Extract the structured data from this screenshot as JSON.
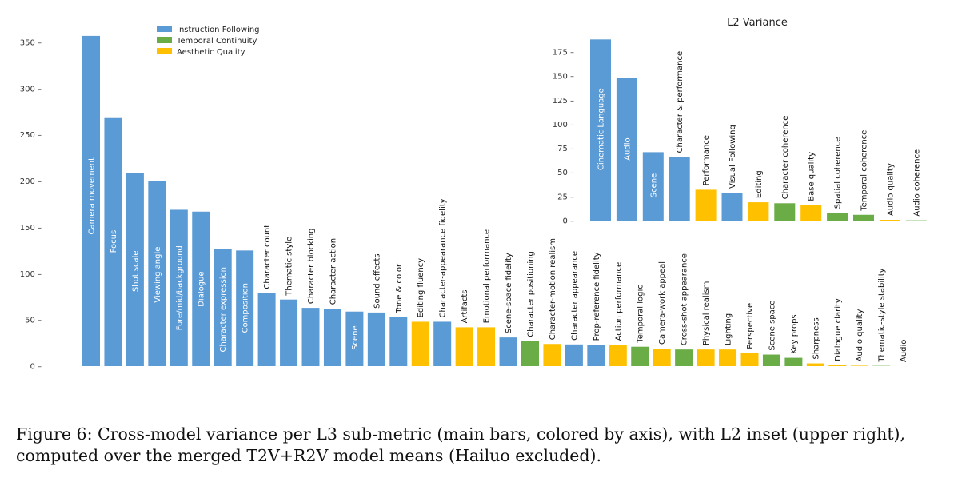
{
  "caption": "Figure 6: Cross-model variance per L3 sub-metric (main bars, colored by axis), with L2 inset (upper right), computed over the merged T2V+R2V model means (Hailuo excluded).",
  "colors": {
    "Instruction Following": "#5b9bd5",
    "Temporal Continuity": "#6aac45",
    "Aesthetic Quality": "#ffc000"
  },
  "chart_data": [
    {
      "type": "bar",
      "title": "",
      "xlabel": "",
      "ylabel": "",
      "ylim": [
        0,
        360
      ],
      "yticks": [
        0,
        50,
        100,
        150,
        200,
        250,
        300,
        350
      ],
      "legend": {
        "placement": "top-left",
        "entries": [
          "Instruction Following",
          "Temporal Continuity",
          "Aesthetic Quality"
        ]
      },
      "grid": false,
      "bars": [
        {
          "label": "Camera movement",
          "value": 357,
          "axis": "Instruction Following"
        },
        {
          "label": "Focus",
          "value": 269,
          "axis": "Instruction Following"
        },
        {
          "label": "Shot scale",
          "value": 209,
          "axis": "Instruction Following"
        },
        {
          "label": "Viewing angle",
          "value": 200,
          "axis": "Instruction Following"
        },
        {
          "label": "Fore/mid/background",
          "value": 169,
          "axis": "Instruction Following"
        },
        {
          "label": "Dialogue",
          "value": 167,
          "axis": "Instruction Following"
        },
        {
          "label": "Character expression",
          "value": 127,
          "axis": "Instruction Following"
        },
        {
          "label": "Composition",
          "value": 125,
          "axis": "Instruction Following"
        },
        {
          "label": "Character count",
          "value": 79,
          "axis": "Instruction Following"
        },
        {
          "label": "Thematic style",
          "value": 72,
          "axis": "Instruction Following"
        },
        {
          "label": "Character blocking",
          "value": 63,
          "axis": "Instruction Following"
        },
        {
          "label": "Character action",
          "value": 62,
          "axis": "Instruction Following"
        },
        {
          "label": "Scene",
          "value": 59,
          "axis": "Instruction Following"
        },
        {
          "label": "Sound effects",
          "value": 58,
          "axis": "Instruction Following"
        },
        {
          "label": "Tone & color",
          "value": 53,
          "axis": "Instruction Following"
        },
        {
          "label": "Editing fluency",
          "value": 48,
          "axis": "Aesthetic Quality"
        },
        {
          "label": "Character-appearance fidelity",
          "value": 48,
          "axis": "Instruction Following"
        },
        {
          "label": "Artifacts",
          "value": 42,
          "axis": "Aesthetic Quality"
        },
        {
          "label": "Emotional performance",
          "value": 42,
          "axis": "Aesthetic Quality"
        },
        {
          "label": "Scene-space fidelity",
          "value": 31,
          "axis": "Instruction Following"
        },
        {
          "label": "Character positioning",
          "value": 27,
          "axis": "Temporal Continuity"
        },
        {
          "label": "Character-motion realism",
          "value": 24,
          "axis": "Aesthetic Quality"
        },
        {
          "label": "Character appearance",
          "value": 23.5,
          "axis": "Instruction Following"
        },
        {
          "label": "Prop-reference fidelity",
          "value": 23,
          "axis": "Instruction Following"
        },
        {
          "label": "Action performance",
          "value": 23,
          "axis": "Aesthetic Quality"
        },
        {
          "label": "Temporal logic",
          "value": 21,
          "axis": "Temporal Continuity"
        },
        {
          "label": "Camera-work appeal",
          "value": 19,
          "axis": "Aesthetic Quality"
        },
        {
          "label": "Cross-shot appearance",
          "value": 18,
          "axis": "Temporal Continuity"
        },
        {
          "label": "Physical realism",
          "value": 18,
          "axis": "Aesthetic Quality"
        },
        {
          "label": "Lighting",
          "value": 18,
          "axis": "Aesthetic Quality"
        },
        {
          "label": "Perspective",
          "value": 14,
          "axis": "Aesthetic Quality"
        },
        {
          "label": "Scene space",
          "value": 12.5,
          "axis": "Temporal Continuity"
        },
        {
          "label": "Key props",
          "value": 9,
          "axis": "Temporal Continuity"
        },
        {
          "label": "Sharpness",
          "value": 3,
          "axis": "Aesthetic Quality"
        },
        {
          "label": "Dialogue clarity",
          "value": 1,
          "axis": "Aesthetic Quality"
        },
        {
          "label": "Audio quality",
          "value": 0.5,
          "axis": "Aesthetic Quality"
        },
        {
          "label": "Thematic-style stability",
          "value": 0.3,
          "axis": "Temporal Continuity"
        },
        {
          "label": "Audio",
          "value": 0,
          "axis": "Temporal Continuity"
        }
      ]
    },
    {
      "type": "bar",
      "title": "L2 Variance",
      "xlabel": "",
      "ylabel": "",
      "ylim": [
        0,
        190
      ],
      "yticks": [
        0,
        25,
        50,
        75,
        100,
        125,
        150,
        175
      ],
      "grid": false,
      "bars": [
        {
          "label": "Cinematic Language",
          "value": 188,
          "axis": "Instruction Following"
        },
        {
          "label": "Audio",
          "value": 148,
          "axis": "Instruction Following"
        },
        {
          "label": "Scene",
          "value": 71,
          "axis": "Instruction Following"
        },
        {
          "label": "Character & performance",
          "value": 66,
          "axis": "Instruction Following"
        },
        {
          "label": "Performance",
          "value": 32,
          "axis": "Aesthetic Quality"
        },
        {
          "label": "Visual Following",
          "value": 29,
          "axis": "Instruction Following"
        },
        {
          "label": "Editing",
          "value": 19,
          "axis": "Aesthetic Quality"
        },
        {
          "label": "Character coherence",
          "value": 18,
          "axis": "Temporal Continuity"
        },
        {
          "label": "Base quality",
          "value": 16,
          "axis": "Aesthetic Quality"
        },
        {
          "label": "Spatial coherence",
          "value": 8,
          "axis": "Temporal Continuity"
        },
        {
          "label": "Temporal coherence",
          "value": 6,
          "axis": "Temporal Continuity"
        },
        {
          "label": "Audio quality",
          "value": 0.8,
          "axis": "Aesthetic Quality"
        },
        {
          "label": "Audio coherence",
          "value": 0.3,
          "axis": "Temporal Continuity"
        }
      ]
    }
  ]
}
